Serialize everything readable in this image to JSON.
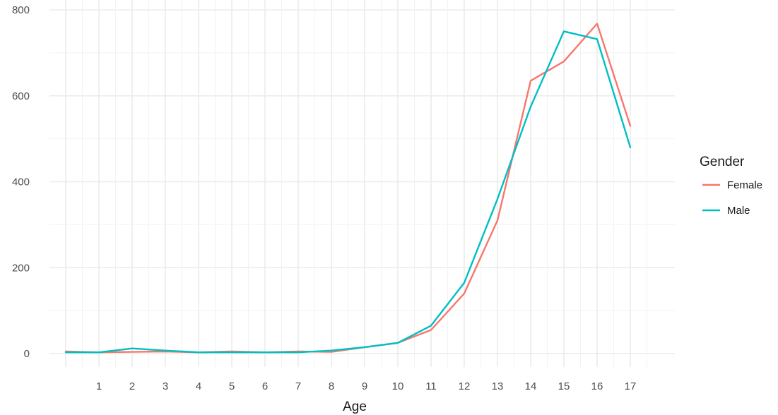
{
  "chart_data": {
    "type": "line",
    "x": [
      0,
      1,
      2,
      3,
      4,
      5,
      6,
      7,
      8,
      9,
      10,
      11,
      12,
      13,
      14,
      15,
      16,
      17
    ],
    "x_tick_labels": [
      "1",
      "2",
      "3",
      "4",
      "5",
      "6",
      "7",
      "8",
      "9",
      "10",
      "11",
      "12",
      "13",
      "14",
      "15",
      "16",
      "17"
    ],
    "y_tick_labels": [
      "0",
      "200",
      "400",
      "600",
      "800"
    ],
    "ylim": [
      0,
      800
    ],
    "xlim": [
      0,
      17
    ],
    "xlabel": "Age",
    "ylabel": "",
    "grid": true,
    "legend": {
      "title": "Gender",
      "position": "right"
    },
    "series": [
      {
        "name": "Female",
        "color": "#F8766D",
        "values": [
          5,
          3,
          4,
          5,
          3,
          5,
          3,
          5,
          4,
          15,
          25,
          55,
          140,
          310,
          635,
          680,
          768,
          530
        ]
      },
      {
        "name": "Male",
        "color": "#00BFC4",
        "values": [
          3,
          3,
          12,
          7,
          3,
          3,
          3,
          3,
          7,
          15,
          25,
          65,
          165,
          360,
          575,
          750,
          732,
          480
        ]
      }
    ]
  }
}
